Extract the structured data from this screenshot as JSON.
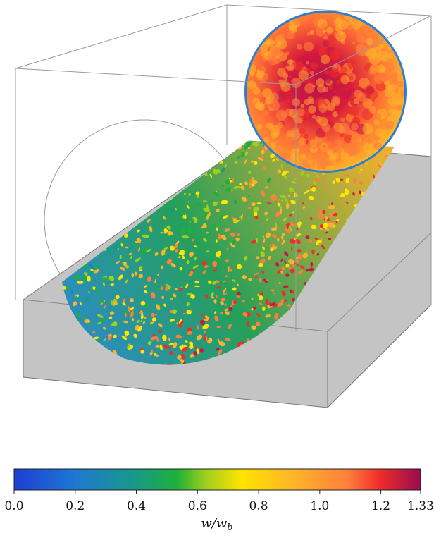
{
  "colorbar": {
    "vlim": [
      0,
      1.33
    ],
    "ticks": [
      {
        "value": 0,
        "label": "0.0"
      },
      {
        "value": 0.2,
        "label": "0.2"
      },
      {
        "value": 0.4,
        "label": "0.4"
      },
      {
        "value": 0.6,
        "label": "0.6"
      },
      {
        "value": 0.8,
        "label": "0.8"
      },
      {
        "value": 1,
        "label": "1.0"
      },
      {
        "value": 1.2,
        "label": "1.2"
      },
      1.33
    ],
    "label": "w/w",
    "label_subscript": "b"
  }
}
